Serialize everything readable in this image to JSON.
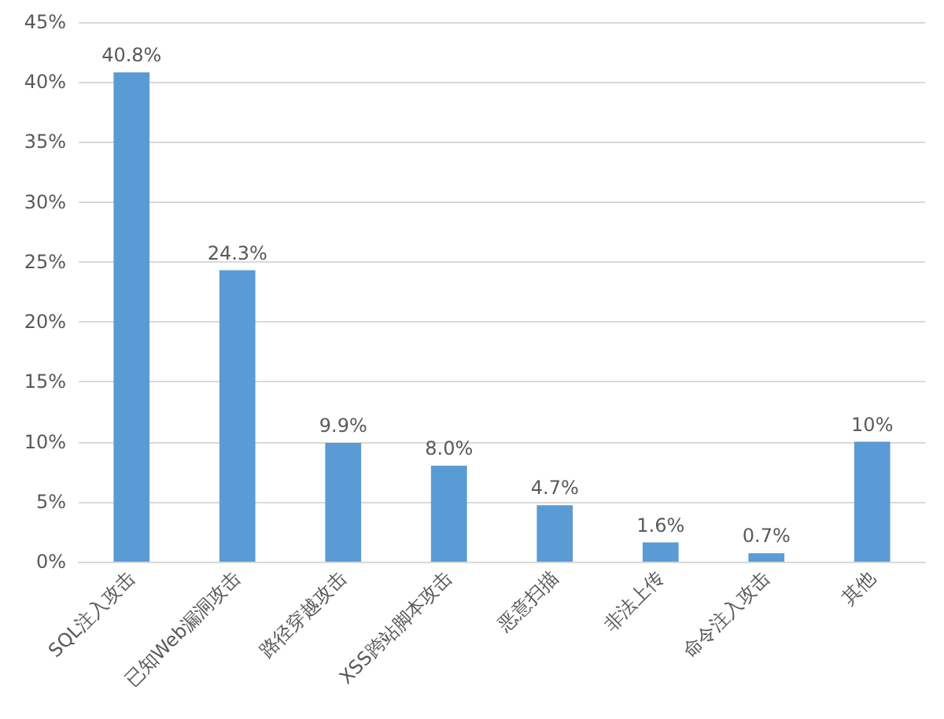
{
  "chart_data": {
    "type": "bar",
    "categories": [
      "SQL注入攻击",
      "已知Web漏洞攻击",
      "路径穿越攻击",
      "XSS跨站脚本攻击",
      "恶意扫描",
      "非法上传",
      "命令注入攻击",
      "其他"
    ],
    "values": [
      40.8,
      24.3,
      9.9,
      8.0,
      4.7,
      1.6,
      0.7,
      10
    ],
    "value_labels": [
      "40.8%",
      "24.3%",
      "9.9%",
      "8.0%",
      "4.7%",
      "1.6%",
      "0.7%",
      "10%"
    ],
    "color": "#5b9bd5",
    "ylim": [
      0,
      45
    ],
    "yticks": [
      {
        "value": 0,
        "label": "0%"
      },
      {
        "value": 5,
        "label": "5%"
      },
      {
        "value": 10,
        "label": "10%"
      },
      {
        "value": 15,
        "label": "15%"
      },
      {
        "value": 20,
        "label": "20%"
      },
      {
        "value": 25,
        "label": "25%"
      },
      {
        "value": 30,
        "label": "30%"
      },
      {
        "value": 35,
        "label": "35%"
      },
      {
        "value": 40,
        "label": "40%"
      },
      {
        "value": 45,
        "label": "45%"
      }
    ],
    "grid": "y"
  }
}
